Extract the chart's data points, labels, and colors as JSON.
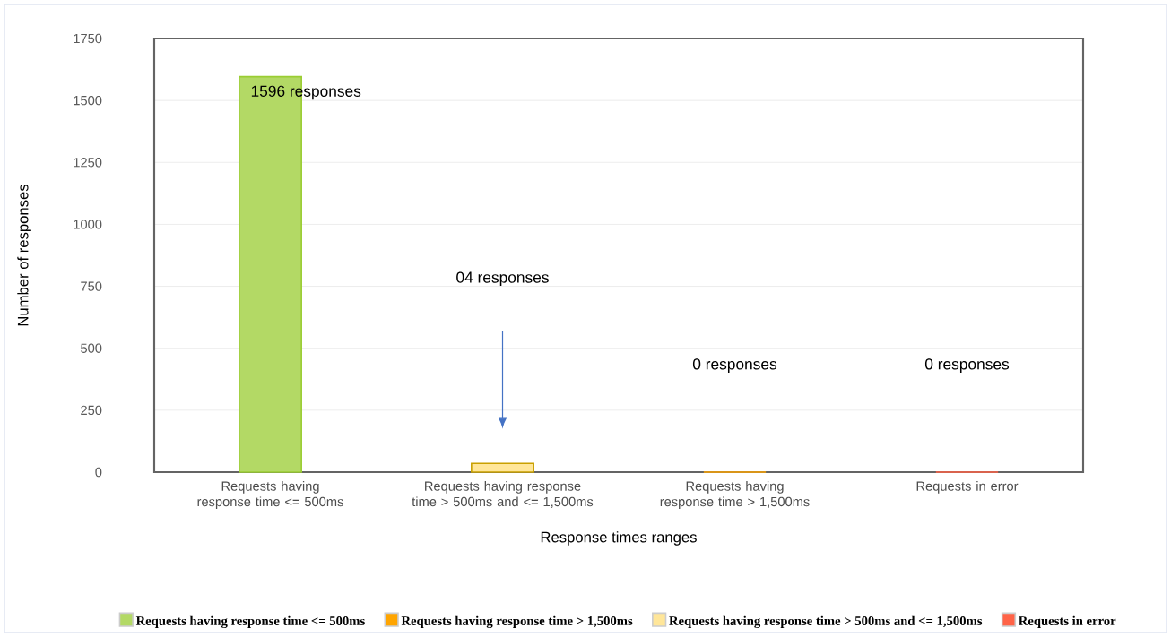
{
  "chart_data": {
    "type": "bar",
    "xlabel": "Response times ranges",
    "ylabel": "Number of responses",
    "categories": [
      "Requests having response time <= 500ms",
      "Requests having response time > 500ms and <= 1,500ms",
      "Requests having response time > 1,500ms",
      "Requests in error"
    ],
    "series": [
      {
        "name": "Requests having response time <= 500ms",
        "color": "#b3d965",
        "values": [
          1596,
          null,
          null,
          null
        ]
      },
      {
        "name": "Requests having response time > 1,500ms",
        "color": "#ffa500",
        "values": [
          null,
          null,
          0,
          null
        ]
      },
      {
        "name": "Requests having response time > 500ms and <= 1,500ms",
        "color": "#ffe699",
        "values": [
          null,
          35,
          null,
          null
        ]
      },
      {
        "name": "Requests in error",
        "color": "#ff6347",
        "values": [
          null,
          null,
          null,
          0
        ]
      }
    ],
    "ylim": [
      0,
      1750
    ],
    "yticks": [
      0,
      250,
      500,
      750,
      1000,
      1250,
      1500,
      1750
    ],
    "grid": "y",
    "legend": "bottom",
    "annotations": [
      "1596 responses",
      "04 responses",
      "0 responses",
      "0 responses"
    ]
  }
}
